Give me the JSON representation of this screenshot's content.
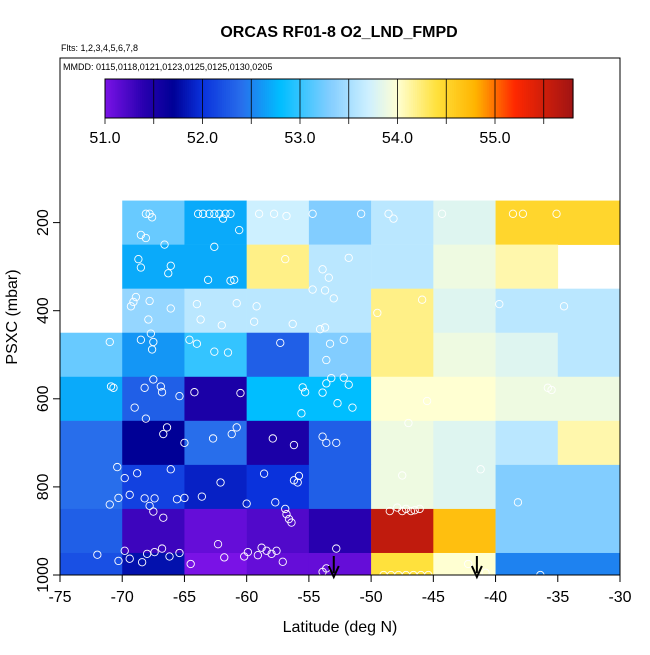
{
  "chart_data": {
    "type": "heatmap",
    "title": "ORCAS RF01-8 O2_LND_FMPD",
    "subtitle_flights": "Flts: 1,2,3,4,5,6,7,8",
    "subtitle_dates": "MMDD: 0115,0118,0121,0123,0125,0125,0130,0205",
    "xlabel": "Latitude (deg N)",
    "ylabel": "PSXC (mbar)",
    "xlim": [
      -75,
      -30
    ],
    "ylim": [
      1000,
      100
    ],
    "x_ticks": [
      "-75",
      "-70",
      "-65",
      "-60",
      "-55",
      "-50",
      "-45",
      "-40",
      "-35",
      "-30"
    ],
    "y_ticks": [
      "200",
      "400",
      "600",
      "800",
      "1000"
    ],
    "colorbar_ticks": [
      "51.0",
      "52.0",
      "53.0",
      "54.0",
      "55.0"
    ],
    "colorbar_range": [
      51.0,
      55.8
    ],
    "cell_width_deg": 5,
    "cell_height_mbar": 100,
    "cells": [
      {
        "lat": -70,
        "p": 200,
        "v": 53.2
      },
      {
        "lat": -65,
        "p": 200,
        "v": 52.7
      },
      {
        "lat": -60,
        "p": 200,
        "v": 53.7
      },
      {
        "lat": -55,
        "p": 200,
        "v": 53.3
      },
      {
        "lat": -50,
        "p": 200,
        "v": 53.6
      },
      {
        "lat": -45,
        "p": 200,
        "v": 53.8
      },
      {
        "lat": -40,
        "p": 200,
        "v": 54.5
      },
      {
        "lat": -35,
        "p": 200,
        "v": 54.5
      },
      {
        "lat": -70,
        "p": 300,
        "v": 52.7
      },
      {
        "lat": -65,
        "p": 300,
        "v": 52.7
      },
      {
        "lat": -60,
        "p": 300,
        "v": 54.2
      },
      {
        "lat": -55,
        "p": 300,
        "v": 53.6
      },
      {
        "lat": -50,
        "p": 300,
        "v": 53.6
      },
      {
        "lat": -45,
        "p": 300,
        "v": 53.9
      },
      {
        "lat": -40,
        "p": 300,
        "v": 54.1
      },
      {
        "lat": -70,
        "p": 400,
        "v": 53.4
      },
      {
        "lat": -65,
        "p": 400,
        "v": 53.6
      },
      {
        "lat": -60,
        "p": 400,
        "v": 53.6
      },
      {
        "lat": -55,
        "p": 400,
        "v": 53.6
      },
      {
        "lat": -50,
        "p": 400,
        "v": 54.2
      },
      {
        "lat": -45,
        "p": 400,
        "v": 53.8
      },
      {
        "lat": -40,
        "p": 400,
        "v": 53.6
      },
      {
        "lat": -35,
        "p": 400,
        "v": 53.6
      },
      {
        "lat": -75,
        "p": 500,
        "v": 53.2
      },
      {
        "lat": -70,
        "p": 500,
        "v": 52.6
      },
      {
        "lat": -65,
        "p": 500,
        "v": 53.0
      },
      {
        "lat": -60,
        "p": 500,
        "v": 52.3
      },
      {
        "lat": -55,
        "p": 500,
        "v": 53.3
      },
      {
        "lat": -50,
        "p": 500,
        "v": 54.2
      },
      {
        "lat": -45,
        "p": 500,
        "v": 53.9
      },
      {
        "lat": -40,
        "p": 500,
        "v": 53.8
      },
      {
        "lat": -35,
        "p": 500,
        "v": 53.6
      },
      {
        "lat": -75,
        "p": 600,
        "v": 52.7
      },
      {
        "lat": -70,
        "p": 600,
        "v": 52.3
      },
      {
        "lat": -65,
        "p": 600,
        "v": 51.5
      },
      {
        "lat": -60,
        "p": 600,
        "v": 52.8
      },
      {
        "lat": -55,
        "p": 600,
        "v": 52.8
      },
      {
        "lat": -50,
        "p": 600,
        "v": 54.0
      },
      {
        "lat": -45,
        "p": 600,
        "v": 54.0
      },
      {
        "lat": -40,
        "p": 600,
        "v": 53.9
      },
      {
        "lat": -35,
        "p": 600,
        "v": 53.9
      },
      {
        "lat": -75,
        "p": 700,
        "v": 52.4
      },
      {
        "lat": -70,
        "p": 700,
        "v": 51.7
      },
      {
        "lat": -65,
        "p": 700,
        "v": 52.4
      },
      {
        "lat": -60,
        "p": 700,
        "v": 51.5
      },
      {
        "lat": -55,
        "p": 700,
        "v": 52.3
      },
      {
        "lat": -50,
        "p": 700,
        "v": 53.9
      },
      {
        "lat": -45,
        "p": 700,
        "v": 53.8
      },
      {
        "lat": -40,
        "p": 700,
        "v": 53.6
      },
      {
        "lat": -35,
        "p": 700,
        "v": 54.1
      },
      {
        "lat": -75,
        "p": 800,
        "v": 52.4
      },
      {
        "lat": -70,
        "p": 800,
        "v": 52.1
      },
      {
        "lat": -65,
        "p": 800,
        "v": 51.9
      },
      {
        "lat": -60,
        "p": 800,
        "v": 52.0
      },
      {
        "lat": -55,
        "p": 800,
        "v": 52.3
      },
      {
        "lat": -50,
        "p": 800,
        "v": 53.9
      },
      {
        "lat": -45,
        "p": 800,
        "v": 53.8
      },
      {
        "lat": -40,
        "p": 800,
        "v": 53.3
      },
      {
        "lat": -35,
        "p": 800,
        "v": 53.3
      },
      {
        "lat": -75,
        "p": 900,
        "v": 52.3
      },
      {
        "lat": -70,
        "p": 900,
        "v": 51.3
      },
      {
        "lat": -65,
        "p": 900,
        "v": 51.1
      },
      {
        "lat": -60,
        "p": 900,
        "v": 51.2
      },
      {
        "lat": -55,
        "p": 900,
        "v": 51.4
      },
      {
        "lat": -50,
        "p": 900,
        "v": 55.6
      },
      {
        "lat": -45,
        "p": 900,
        "v": 54.7
      },
      {
        "lat": -40,
        "p": 900,
        "v": 53.3
      },
      {
        "lat": -35,
        "p": 900,
        "v": 53.3
      },
      {
        "lat": -75,
        "p": 1000,
        "v": 52.2
      },
      {
        "lat": -70,
        "p": 1000,
        "v": 51.8
      },
      {
        "lat": -65,
        "p": 1000,
        "v": 51.0
      },
      {
        "lat": -60,
        "p": 1000,
        "v": 51.1
      },
      {
        "lat": -55,
        "p": 1000,
        "v": 51.1
      },
      {
        "lat": -50,
        "p": 1000,
        "v": 54.4
      },
      {
        "lat": -45,
        "p": 1000,
        "v": 54.0
      },
      {
        "lat": -40,
        "p": 1000,
        "v": 52.5
      },
      {
        "lat": -35,
        "p": 1000,
        "v": 52.5
      }
    ],
    "observations": [
      [
        -68.1,
        180
      ],
      [
        -67.8,
        180
      ],
      [
        -67.6,
        188
      ],
      [
        -63.9,
        180
      ],
      [
        -63.5,
        180
      ],
      [
        -63.0,
        180
      ],
      [
        -62.6,
        180
      ],
      [
        -62.2,
        180
      ],
      [
        -61.7,
        180
      ],
      [
        -61.3,
        180
      ],
      [
        -61.9,
        191
      ],
      [
        -59.0,
        180
      ],
      [
        -57.8,
        180
      ],
      [
        -56.8,
        185
      ],
      [
        -54.7,
        180
      ],
      [
        -50.8,
        180
      ],
      [
        -48.6,
        180
      ],
      [
        -48.2,
        191
      ],
      [
        -44.3,
        180
      ],
      [
        -38.6,
        180
      ],
      [
        -37.8,
        180
      ],
      [
        -35.1,
        180
      ],
      [
        -68.5,
        228
      ],
      [
        -68.1,
        235
      ],
      [
        -66.6,
        250
      ],
      [
        -68.7,
        283
      ],
      [
        -62.6,
        255
      ],
      [
        -60.6,
        217
      ],
      [
        -68.5,
        302
      ],
      [
        -66.1,
        298
      ],
      [
        -56.9,
        283
      ],
      [
        -51.8,
        280
      ],
      [
        -53.4,
        325
      ],
      [
        -53.9,
        306
      ],
      [
        -66.3,
        315
      ],
      [
        -63.1,
        330
      ],
      [
        -61.3,
        332
      ],
      [
        -61.0,
        330
      ],
      [
        -54.7,
        352
      ],
      [
        -53.7,
        354
      ],
      [
        -69.1,
        380
      ],
      [
        -68.9,
        369
      ],
      [
        -69.3,
        390
      ],
      [
        -67.8,
        378
      ],
      [
        -66.1,
        395
      ],
      [
        -64.0,
        385
      ],
      [
        -60.8,
        383
      ],
      [
        -59.2,
        390
      ],
      [
        -53.0,
        372
      ],
      [
        -45.9,
        375
      ],
      [
        -39.7,
        385
      ],
      [
        -34.5,
        390
      ],
      [
        -67.9,
        420
      ],
      [
        -63.7,
        420
      ],
      [
        -62.0,
        433
      ],
      [
        -59.4,
        425
      ],
      [
        -56.3,
        430
      ],
      [
        -54.1,
        442
      ],
      [
        -53.7,
        438
      ],
      [
        -49.5,
        405
      ],
      [
        -71.0,
        471
      ],
      [
        -68.5,
        466
      ],
      [
        -67.7,
        452
      ],
      [
        -67.6,
        488
      ],
      [
        -67.5,
        471
      ],
      [
        -64.6,
        466
      ],
      [
        -64.0,
        475
      ],
      [
        -62.6,
        493
      ],
      [
        -61.5,
        495
      ],
      [
        -57.3,
        473
      ],
      [
        -53.3,
        475
      ],
      [
        -53.6,
        512
      ],
      [
        -52.2,
        466
      ],
      [
        -70.9,
        572
      ],
      [
        -70.7,
        575
      ],
      [
        -68.2,
        575
      ],
      [
        -67.5,
        556
      ],
      [
        -66.9,
        572
      ],
      [
        -66.8,
        585
      ],
      [
        -65.4,
        594
      ],
      [
        -64.2,
        585
      ],
      [
        -60.5,
        587
      ],
      [
        -55.5,
        574
      ],
      [
        -55.3,
        585
      ],
      [
        -53.9,
        586
      ],
      [
        -53.6,
        565
      ],
      [
        -53.2,
        553
      ],
      [
        -52.2,
        552
      ],
      [
        -51.8,
        568
      ],
      [
        -45.5,
        605
      ],
      [
        -35.8,
        575
      ],
      [
        -35.5,
        580
      ],
      [
        -55.6,
        633
      ],
      [
        -52.7,
        610
      ],
      [
        -51.5,
        620
      ],
      [
        -47.0,
        655
      ],
      [
        -69.0,
        620
      ],
      [
        -68.1,
        645
      ],
      [
        -66.4,
        665
      ],
      [
        -66.7,
        680
      ],
      [
        -65.0,
        700
      ],
      [
        -62.7,
        690
      ],
      [
        -61.2,
        680
      ],
      [
        -60.8,
        665
      ],
      [
        -57.9,
        690
      ],
      [
        -56.2,
        705
      ],
      [
        -53.9,
        686
      ],
      [
        -53.6,
        700
      ],
      [
        -52.8,
        700
      ],
      [
        -70.4,
        755
      ],
      [
        -69.8,
        780
      ],
      [
        -68.8,
        769
      ],
      [
        -66.1,
        760
      ],
      [
        -62.1,
        790
      ],
      [
        -58.6,
        770
      ],
      [
        -55.8,
        775
      ],
      [
        -56.2,
        785
      ],
      [
        -55.9,
        790
      ],
      [
        -47.5,
        774
      ],
      [
        -41.2,
        760
      ],
      [
        -70.3,
        825
      ],
      [
        -69.4,
        818
      ],
      [
        -71.0,
        840
      ],
      [
        -68.2,
        826
      ],
      [
        -67.8,
        843
      ],
      [
        -67.5,
        856
      ],
      [
        -67.4,
        826
      ],
      [
        -66.7,
        870
      ],
      [
        -65.6,
        828
      ],
      [
        -65.0,
        825
      ],
      [
        -63.6,
        822
      ],
      [
        -60.0,
        838
      ],
      [
        -57.7,
        835
      ],
      [
        -56.9,
        850
      ],
      [
        -56.8,
        862
      ],
      [
        -56.6,
        873
      ],
      [
        -56.4,
        881
      ],
      [
        -48.5,
        855
      ],
      [
        -47.9,
        847
      ],
      [
        -47.5,
        855
      ],
      [
        -47.2,
        850
      ],
      [
        -46.8,
        855
      ],
      [
        -46.5,
        853
      ],
      [
        -46.1,
        850
      ],
      [
        -38.2,
        835
      ],
      [
        -72.0,
        954
      ],
      [
        -70.3,
        968
      ],
      [
        -69.8,
        945
      ],
      [
        -69.4,
        963
      ],
      [
        -68.4,
        971
      ],
      [
        -68.0,
        952
      ],
      [
        -67.4,
        948
      ],
      [
        -66.8,
        940
      ],
      [
        -66.2,
        958
      ],
      [
        -65.4,
        950
      ],
      [
        -64.5,
        975
      ],
      [
        -62.3,
        930
      ],
      [
        -61.8,
        960
      ],
      [
        -60.2,
        958
      ],
      [
        -59.9,
        948
      ],
      [
        -59.1,
        955
      ],
      [
        -58.8,
        938
      ],
      [
        -58.4,
        945
      ],
      [
        -58.0,
        952
      ],
      [
        -57.6,
        945
      ],
      [
        -57.1,
        970
      ],
      [
        -52.8,
        940
      ],
      [
        -49.0,
        1000
      ],
      [
        -48.4,
        1000
      ],
      [
        -47.8,
        1000
      ],
      [
        -47.2,
        1000
      ],
      [
        -46.6,
        1000
      ],
      [
        -46.0,
        1000
      ],
      [
        -45.4,
        1000
      ],
      [
        -42.2,
        975
      ],
      [
        -36.4,
        1000
      ],
      [
        -53.9,
        993
      ],
      [
        -53.6,
        985
      ],
      [
        -40.8,
        995
      ]
    ],
    "arrow_latitudes": [
      -53.0,
      -41.5
    ],
    "grid": false
  }
}
